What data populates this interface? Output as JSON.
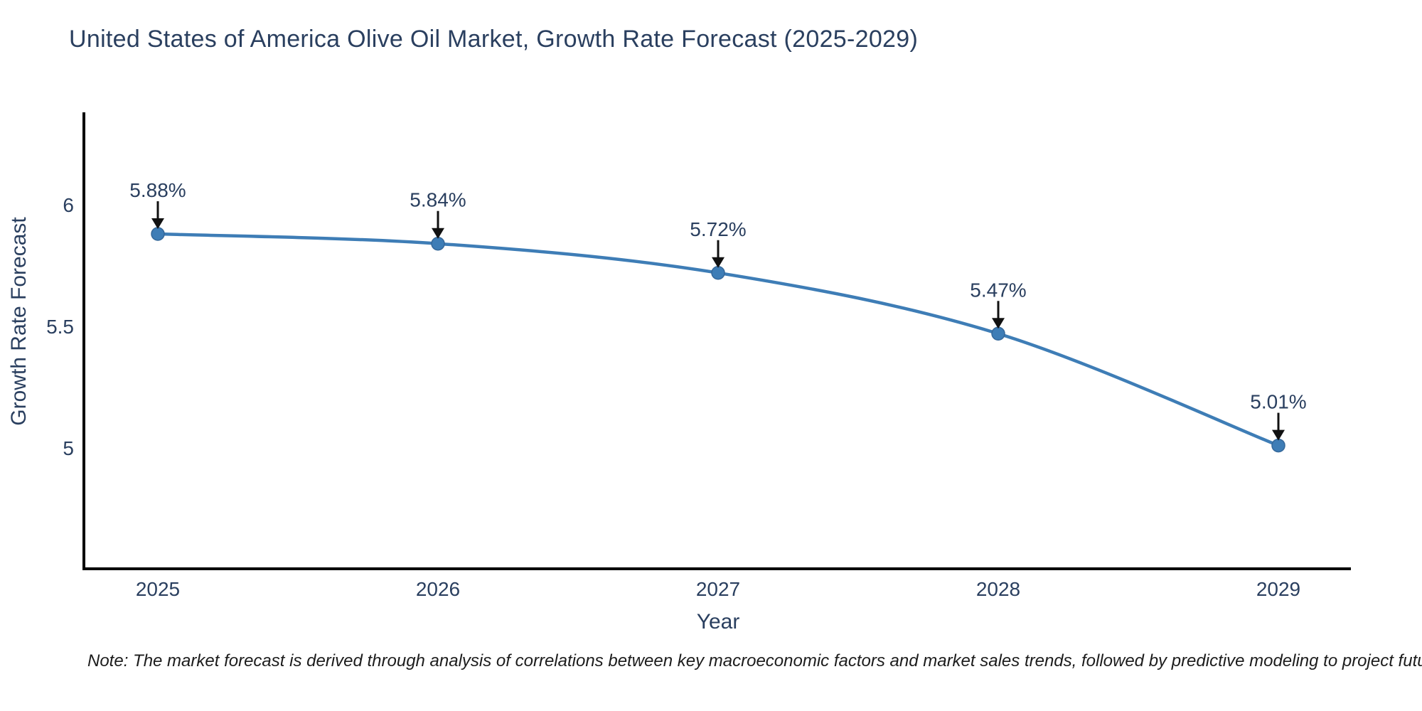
{
  "note": "Note: The market forecast is derived through analysis of correlations between key macroeconomic factors and market sales trends, followed by predictive modeling to project future sales",
  "colors": {
    "background": "#ffffff",
    "line": "#3e7db6",
    "marker": "#3e7db6",
    "marker_edge": "#35689a",
    "axis_line": "#000000",
    "axis_text": "#2a3f5f",
    "annotation_text": "#2a3f5f",
    "arrow": "#111111",
    "title_text": "#2a3f5f",
    "note_text": "#1c1c1c"
  },
  "chart_data": {
    "type": "line",
    "title": "United States of America Olive Oil Market, Growth Rate Forecast (2025-2029)",
    "xlabel": "Year",
    "ylabel": "Growth Rate Forecast",
    "x": [
      2025,
      2026,
      2027,
      2028,
      2029
    ],
    "values": [
      5.88,
      5.84,
      5.72,
      5.47,
      5.01
    ],
    "point_labels": [
      "5.88%",
      "5.84%",
      "5.72%",
      "5.47%",
      "5.01%"
    ],
    "x_ticks": [
      "2025",
      "2026",
      "2027",
      "2028",
      "2029"
    ],
    "y_ticks": [
      5,
      5.5,
      6
    ],
    "ylim": [
      4.5,
      6.38
    ],
    "grid": false,
    "legend": "none",
    "line_shape": "spline",
    "marker": "circle",
    "annotation_style": "label-above-with-down-arrow"
  }
}
